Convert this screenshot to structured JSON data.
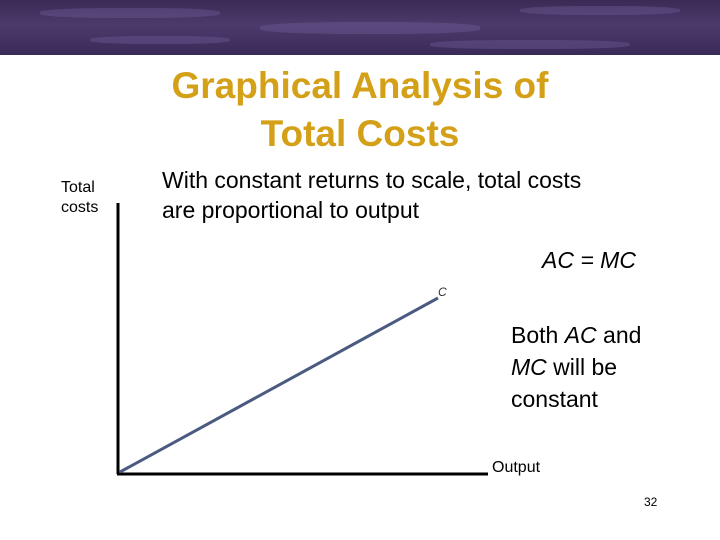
{
  "header": {
    "title_line1": "Graphical Analysis of",
    "title_line2": "Total Costs"
  },
  "body": {
    "subtitle_line1": "With constant returns to scale, total costs",
    "subtitle_line2": "are proportional to output",
    "equation": "AC = MC",
    "note_line1_pre": "Both ",
    "note_line1_ac": "AC",
    "note_line1_post": " and",
    "note_line2_mc": "MC",
    "note_line2_post": " will be",
    "note_line3": "constant"
  },
  "chart_data": {
    "type": "line",
    "ylabel_line1": "Total",
    "ylabel_line2": "costs",
    "xlabel": "Output",
    "series": [
      {
        "name": "C",
        "x": [
          0,
          1
        ],
        "y": [
          0,
          1
        ]
      }
    ]
  },
  "footer": {
    "page_number": "32"
  },
  "colors": {
    "title": "#d4a017",
    "curve": "#4a5a80",
    "banner": "#3f2f5e"
  }
}
